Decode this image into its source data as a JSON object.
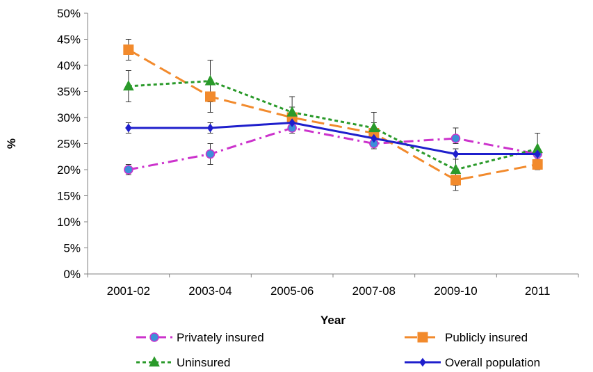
{
  "chart_data": {
    "type": "line",
    "title": "",
    "xlabel": "Year",
    "ylabel": "%",
    "categories": [
      "2001-02",
      "2003-04",
      "2005-06",
      "2007-08",
      "2009-10",
      "2011"
    ],
    "ylim": [
      0,
      50
    ],
    "yticks": [
      "0%",
      "5%",
      "10%",
      "15%",
      "20%",
      "25%",
      "30%",
      "35%",
      "40%",
      "45%",
      "50%"
    ],
    "grid": false,
    "legend_position": "bottom",
    "series": [
      {
        "name": "Privately insured",
        "values": [
          20,
          23,
          28,
          25,
          26,
          23
        ],
        "error": [
          [
            19,
            21
          ],
          [
            21,
            25
          ],
          [
            27,
            29
          ],
          [
            24,
            26
          ],
          [
            25,
            28
          ],
          [
            22,
            24
          ]
        ],
        "color": "#cc33cc",
        "marker_fill": "#3d8fd8",
        "marker": "circle",
        "dash": "dashdot"
      },
      {
        "name": "Publicly insured",
        "values": [
          43,
          34,
          30,
          27,
          18,
          21
        ],
        "error": [
          [
            41,
            45
          ],
          [
            31,
            37
          ],
          [
            28,
            32
          ],
          [
            25,
            29
          ],
          [
            16,
            20
          ],
          [
            20,
            22
          ]
        ],
        "color": "#f28a2c",
        "marker_fill": "#f28a2c",
        "marker": "square",
        "dash": "longdash"
      },
      {
        "name": "Uninsured",
        "values": [
          36,
          37,
          31,
          28,
          20,
          24
        ],
        "error": [
          [
            33,
            39
          ],
          [
            33,
            41
          ],
          [
            28,
            34
          ],
          [
            25,
            31
          ],
          [
            17,
            23
          ],
          [
            21,
            27
          ]
        ],
        "color": "#2a9a2a",
        "marker_fill": "#2a9a2a",
        "marker": "triangle",
        "dash": "dotted"
      },
      {
        "name": "Overall population",
        "values": [
          28,
          28,
          29,
          26,
          23,
          23
        ],
        "error": [
          [
            27,
            29
          ],
          [
            27,
            29
          ],
          [
            28,
            30
          ],
          [
            25,
            27
          ],
          [
            22,
            24
          ],
          [
            22,
            24
          ]
        ],
        "color": "#1f1fcc",
        "marker_fill": "#1f1fcc",
        "marker": "diamond",
        "dash": "solid"
      }
    ]
  }
}
